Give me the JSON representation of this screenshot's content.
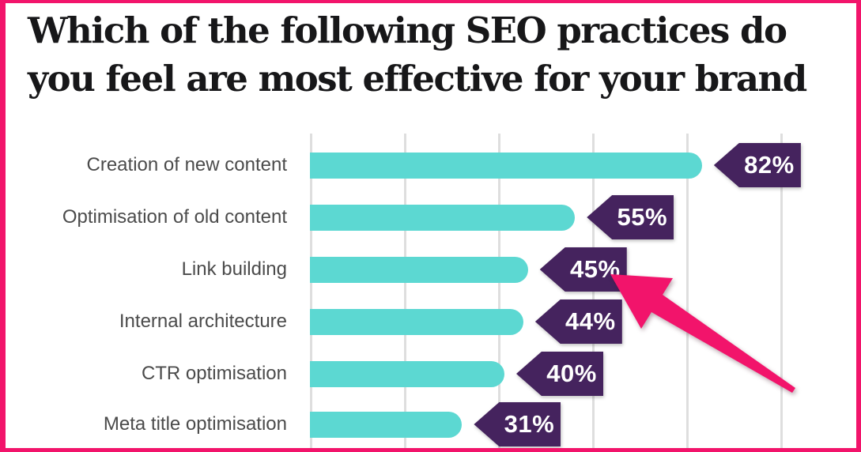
{
  "frame": {
    "border_color": "#F2146B",
    "background": "#FFFFFF"
  },
  "title_lines": [
    "Which of the following SEO practices do",
    "you feel are most effective for your brand"
  ],
  "chart_data": {
    "type": "bar",
    "orientation": "horizontal",
    "title": "Which of the following SEO practices do you feel are most effective for your brand",
    "categories": [
      "Creation of new content",
      "Optimisation of old content",
      "Link building",
      "Internal architecture",
      "CTR optimisation",
      "Meta title optimisation"
    ],
    "values": [
      82,
      55,
      45,
      44,
      40,
      31
    ],
    "value_labels": [
      "82%",
      "55%",
      "45%",
      "44%",
      "40%",
      "31%"
    ],
    "xlim": [
      0,
      100
    ],
    "x_gridline_interval": 20,
    "grid": true,
    "legend": false,
    "bar_color": "#5CD8D2",
    "tag_color": "#45235E",
    "tag_text_color": "#FFFFFF",
    "gridline_color": "#DEDEDE",
    "category_label_color": "#4B4B4B",
    "title_color": "#171719"
  },
  "annotation_arrow": {
    "color": "#F2146B",
    "points_to_value_label": "45%",
    "points_to_category": "Link building",
    "direction": "from lower-right to upper-left"
  }
}
